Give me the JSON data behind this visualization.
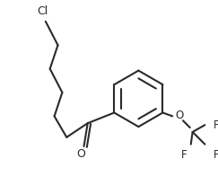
{
  "bg_color": "#ffffff",
  "line_color": "#2a2a2a",
  "line_width": 1.5,
  "cl_label": "Cl",
  "o_label": "O",
  "f_label": "F",
  "ketone_label": "O",
  "fontsize": 8.5
}
